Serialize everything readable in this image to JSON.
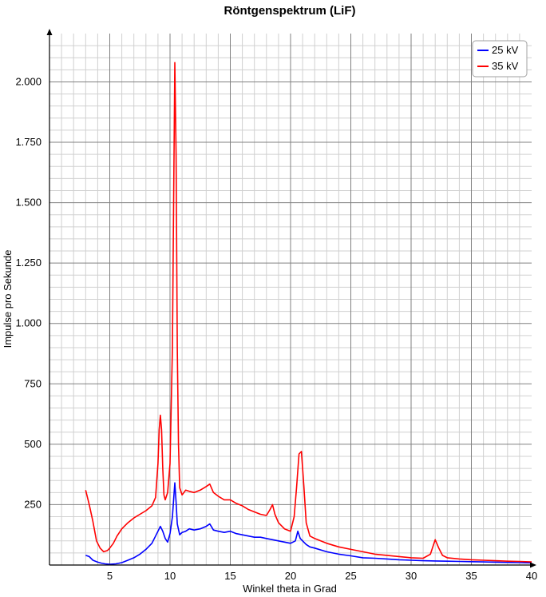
{
  "chart_data": {
    "type": "line",
    "title": "Röntgenspektrum (LiF)",
    "xlabel": "Winkel theta in Grad",
    "ylabel": "Impulse pro Sekunde",
    "xlim": [
      0,
      40
    ],
    "ylim": [
      0,
      2200
    ],
    "xticks": [
      5,
      10,
      15,
      20,
      25,
      30,
      35,
      40
    ],
    "xtick_labels": [
      "5",
      "10",
      "15",
      "20",
      "25",
      "30",
      "35",
      "40"
    ],
    "yticks": [
      250,
      500,
      750,
      1000,
      1250,
      1500,
      1750,
      2000
    ],
    "ytick_labels": [
      "250",
      "500",
      "750",
      "1.000",
      "1.250",
      "1.500",
      "1.750",
      "2.000"
    ],
    "grid": true,
    "legend_position": "top-right",
    "series": [
      {
        "name": "25 kV",
        "color": "#0000ff",
        "x": [
          3.0,
          3.3,
          3.6,
          4.0,
          4.3,
          4.6,
          5.0,
          5.5,
          6.0,
          6.5,
          7.0,
          7.5,
          8.0,
          8.5,
          8.8,
          9.0,
          9.2,
          9.4,
          9.6,
          9.8,
          10.0,
          10.2,
          10.4,
          10.5,
          10.6,
          10.8,
          11.0,
          11.3,
          11.6,
          12.0,
          12.5,
          13.0,
          13.3,
          13.6,
          14.0,
          14.5,
          15.0,
          15.5,
          16.0,
          16.5,
          17.0,
          17.5,
          18.0,
          18.5,
          19.0,
          19.5,
          20.0,
          20.4,
          20.6,
          20.8,
          21.0,
          21.3,
          21.6,
          22.0,
          23.0,
          24.0,
          25.0,
          26.0,
          27.0,
          28.0,
          29.0,
          30.0,
          31.0,
          32.0,
          33.0,
          34.0,
          35.0,
          36.0,
          37.0,
          38.0,
          39.0,
          40.0
        ],
        "y": [
          40,
          35,
          20,
          12,
          8,
          5,
          3,
          5,
          10,
          20,
          30,
          45,
          65,
          90,
          120,
          140,
          160,
          140,
          110,
          95,
          130,
          200,
          340,
          260,
          170,
          125,
          135,
          140,
          150,
          145,
          150,
          160,
          170,
          145,
          140,
          135,
          140,
          130,
          125,
          120,
          115,
          115,
          110,
          105,
          100,
          95,
          90,
          100,
          140,
          110,
          100,
          85,
          75,
          70,
          55,
          45,
          38,
          30,
          28,
          25,
          22,
          20,
          18,
          17,
          16,
          15,
          14,
          13,
          12,
          11,
          10,
          9
        ]
      },
      {
        "name": "35 kV",
        "color": "#ff0000",
        "x": [
          3.0,
          3.3,
          3.6,
          3.9,
          4.2,
          4.5,
          4.8,
          5.0,
          5.3,
          5.6,
          6.0,
          6.5,
          7.0,
          7.5,
          8.0,
          8.5,
          8.8,
          9.0,
          9.1,
          9.2,
          9.3,
          9.4,
          9.5,
          9.6,
          9.8,
          10.0,
          10.2,
          10.3,
          10.4,
          10.5,
          10.6,
          10.7,
          10.8,
          11.0,
          11.3,
          11.6,
          12.0,
          12.5,
          13.0,
          13.3,
          13.6,
          14.0,
          14.5,
          15.0,
          15.5,
          16.0,
          16.5,
          17.0,
          17.5,
          18.0,
          18.3,
          18.5,
          18.7,
          19.0,
          19.5,
          20.0,
          20.3,
          20.5,
          20.7,
          20.9,
          21.1,
          21.3,
          21.6,
          22.0,
          23.0,
          24.0,
          25.0,
          26.0,
          27.0,
          28.0,
          29.0,
          30.0,
          31.0,
          31.6,
          32.0,
          32.3,
          32.6,
          33.0,
          34.0,
          35.0,
          36.0,
          37.0,
          38.0,
          39.0,
          40.0
        ],
        "y": [
          310,
          250,
          180,
          100,
          70,
          55,
          60,
          70,
          90,
          120,
          150,
          175,
          195,
          210,
          225,
          245,
          280,
          420,
          560,
          620,
          560,
          400,
          290,
          270,
          300,
          420,
          900,
          1500,
          2080,
          1700,
          900,
          500,
          320,
          290,
          310,
          305,
          300,
          310,
          325,
          335,
          300,
          285,
          270,
          270,
          255,
          245,
          230,
          220,
          210,
          205,
          230,
          250,
          210,
          175,
          150,
          140,
          200,
          320,
          460,
          470,
          330,
          175,
          120,
          110,
          90,
          75,
          65,
          55,
          45,
          40,
          35,
          30,
          28,
          45,
          105,
          70,
          40,
          30,
          25,
          22,
          20,
          18,
          16,
          15,
          13
        ]
      }
    ]
  }
}
